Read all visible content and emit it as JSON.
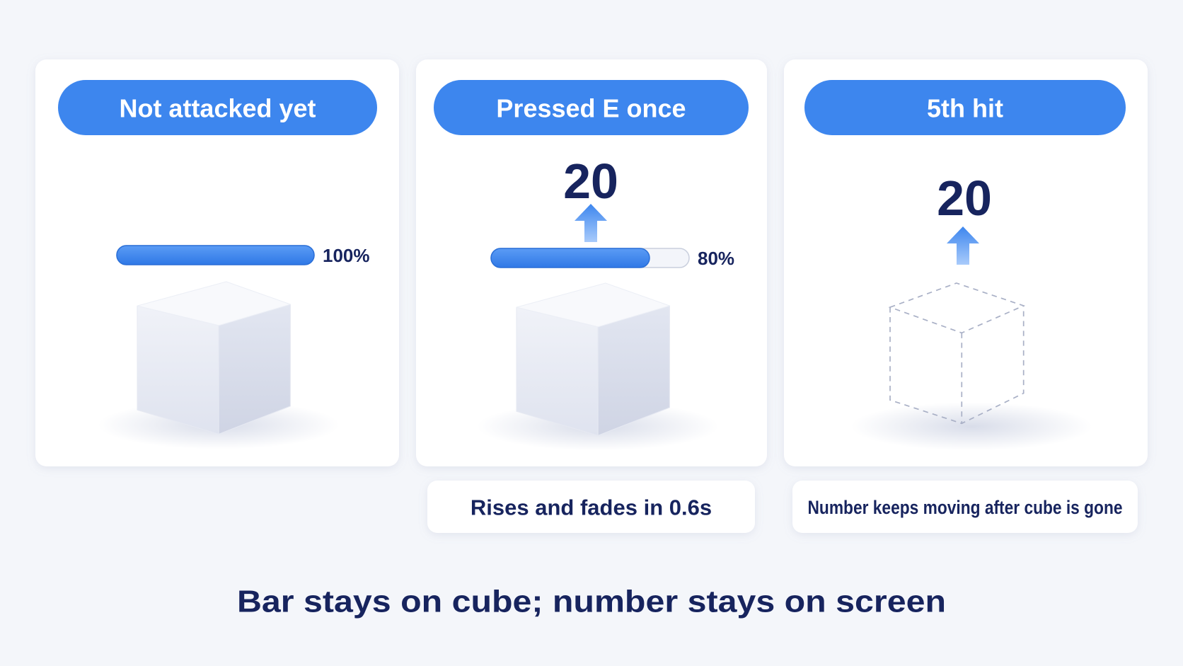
{
  "panels": [
    {
      "title": "Not attacked yet",
      "health": {
        "value": 100,
        "label": "100%"
      }
    },
    {
      "title": "Pressed E once",
      "damage": 20,
      "health": {
        "value": 80,
        "label": "80%"
      },
      "caption": "Rises and fades in 0.6s"
    },
    {
      "title": "5th hit",
      "damage": 20,
      "caption": "Number keeps moving after cube is gone"
    }
  ],
  "footer": "Bar stays on cube; number stays on screen"
}
